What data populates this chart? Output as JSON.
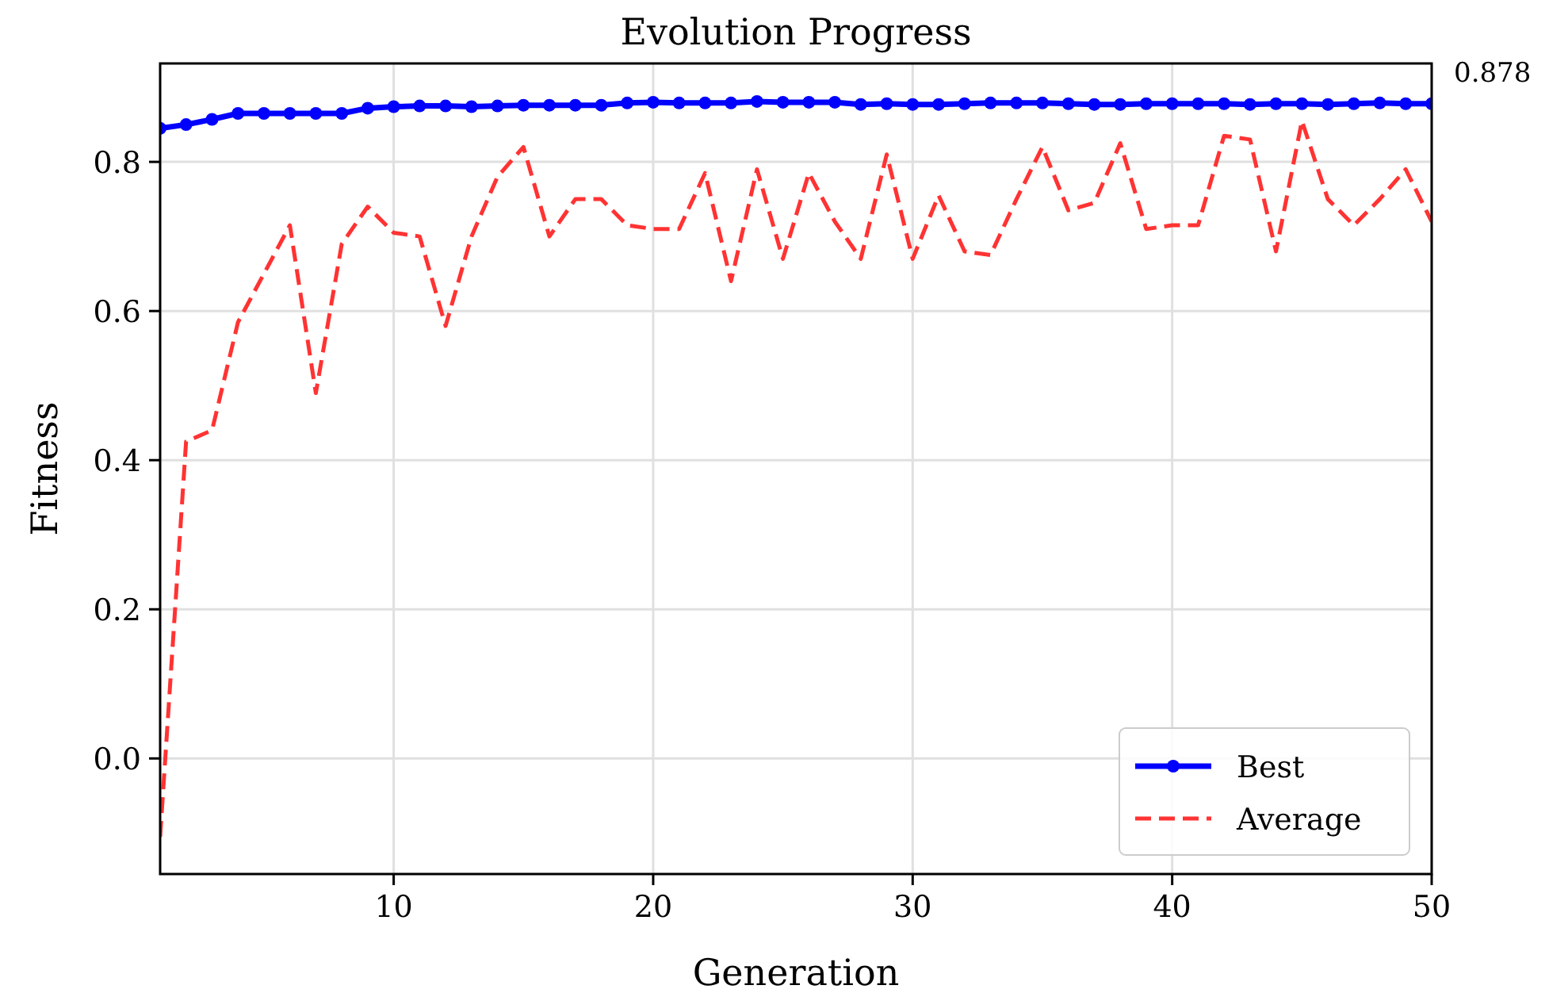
{
  "chart_data": {
    "type": "line",
    "title": "Evolution Progress",
    "xlabel": "Generation",
    "ylabel": "Fitness",
    "x": [
      1,
      2,
      3,
      4,
      5,
      6,
      7,
      8,
      9,
      10,
      11,
      12,
      13,
      14,
      15,
      16,
      17,
      18,
      19,
      20,
      21,
      22,
      23,
      24,
      25,
      26,
      27,
      28,
      29,
      30,
      31,
      32,
      33,
      34,
      35,
      36,
      37,
      38,
      39,
      40,
      41,
      42,
      43,
      44,
      45,
      46,
      47,
      48,
      49,
      50
    ],
    "series": [
      {
        "name": "Best",
        "color": "#0000ff",
        "marker": "circle",
        "line_style": "solid",
        "values": [
          0.845,
          0.85,
          0.857,
          0.865,
          0.865,
          0.865,
          0.865,
          0.865,
          0.872,
          0.874,
          0.875,
          0.875,
          0.874,
          0.875,
          0.876,
          0.876,
          0.876,
          0.876,
          0.879,
          0.88,
          0.879,
          0.879,
          0.879,
          0.881,
          0.88,
          0.88,
          0.88,
          0.877,
          0.878,
          0.877,
          0.877,
          0.878,
          0.879,
          0.879,
          0.879,
          0.878,
          0.877,
          0.877,
          0.878,
          0.878,
          0.878,
          0.878,
          0.877,
          0.878,
          0.878,
          0.877,
          0.878,
          0.879,
          0.878,
          0.878
        ]
      },
      {
        "name": "Average",
        "color": "#ff3333",
        "marker": "none",
        "line_style": "dashed",
        "values": [
          -0.105,
          0.425,
          0.44,
          0.585,
          0.65,
          0.715,
          0.49,
          0.69,
          0.74,
          0.705,
          0.7,
          0.58,
          0.7,
          0.78,
          0.82,
          0.7,
          0.75,
          0.75,
          0.715,
          0.71,
          0.71,
          0.785,
          0.64,
          0.79,
          0.67,
          0.785,
          0.72,
          0.67,
          0.81,
          0.67,
          0.755,
          0.68,
          0.675,
          0.75,
          0.82,
          0.735,
          0.745,
          0.825,
          0.71,
          0.715,
          0.715,
          0.835,
          0.83,
          0.68,
          0.855,
          0.75,
          0.715,
          0.75,
          0.79,
          0.72
        ]
      }
    ],
    "xlim": [
      1,
      50
    ],
    "xticks": [
      10,
      20,
      30,
      40,
      50
    ],
    "ylim": [
      -0.155,
      0.932
    ],
    "yticks": [
      {
        "value": 0,
        "label": "0.0"
      },
      {
        "value": 0.2,
        "label": "0.2"
      },
      {
        "value": 0.4,
        "label": "0.4"
      },
      {
        "value": 0.6,
        "label": "0.6"
      },
      {
        "value": 0.8,
        "label": "0.8"
      }
    ],
    "annotations": [
      {
        "text": "0.878",
        "x": 50,
        "y": 0.878
      }
    ],
    "grid": true,
    "legend": "bottom right"
  }
}
